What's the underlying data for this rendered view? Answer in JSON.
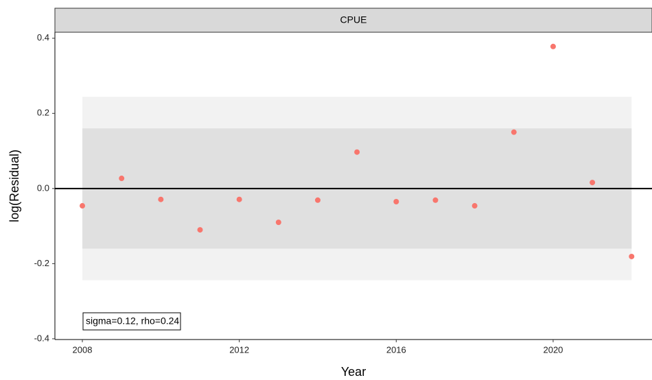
{
  "chart_data": {
    "type": "scatter",
    "strip_title": "CPUE",
    "xlabel": "Year",
    "ylabel": "log(Residual)",
    "annotation": "sigma=0.12, rho=0.24",
    "x": [
      2008,
      2009,
      2010,
      2011,
      2012,
      2013,
      2014,
      2015,
      2016,
      2017,
      2018,
      2019,
      2020,
      2021,
      2022
    ],
    "series": [
      {
        "color": "#f8766d",
        "values": [
          -0.046,
          0.027,
          -0.029,
          -0.11,
          -0.029,
          -0.09,
          -0.031,
          0.097,
          -0.035,
          -0.031,
          -0.046,
          0.15,
          0.378,
          0.016,
          -0.181
        ]
      }
    ],
    "bands": [
      {
        "range": [
          -0.244,
          0.244
        ],
        "color": "#f2f2f2"
      },
      {
        "range": [
          -0.16,
          0.16
        ],
        "color": "#e0e0e0"
      }
    ],
    "band_x": [
      2008,
      2022
    ],
    "hline": 0,
    "xlim": [
      2007.3,
      2022.52
    ],
    "ylim": [
      -0.402,
      0.416
    ],
    "xticks": [
      2008,
      2012,
      2016,
      2020
    ],
    "yticks": [
      -0.4,
      -0.2,
      {
        "value": 0,
        "label": "0.0"
      },
      0.2,
      0.4
    ]
  }
}
